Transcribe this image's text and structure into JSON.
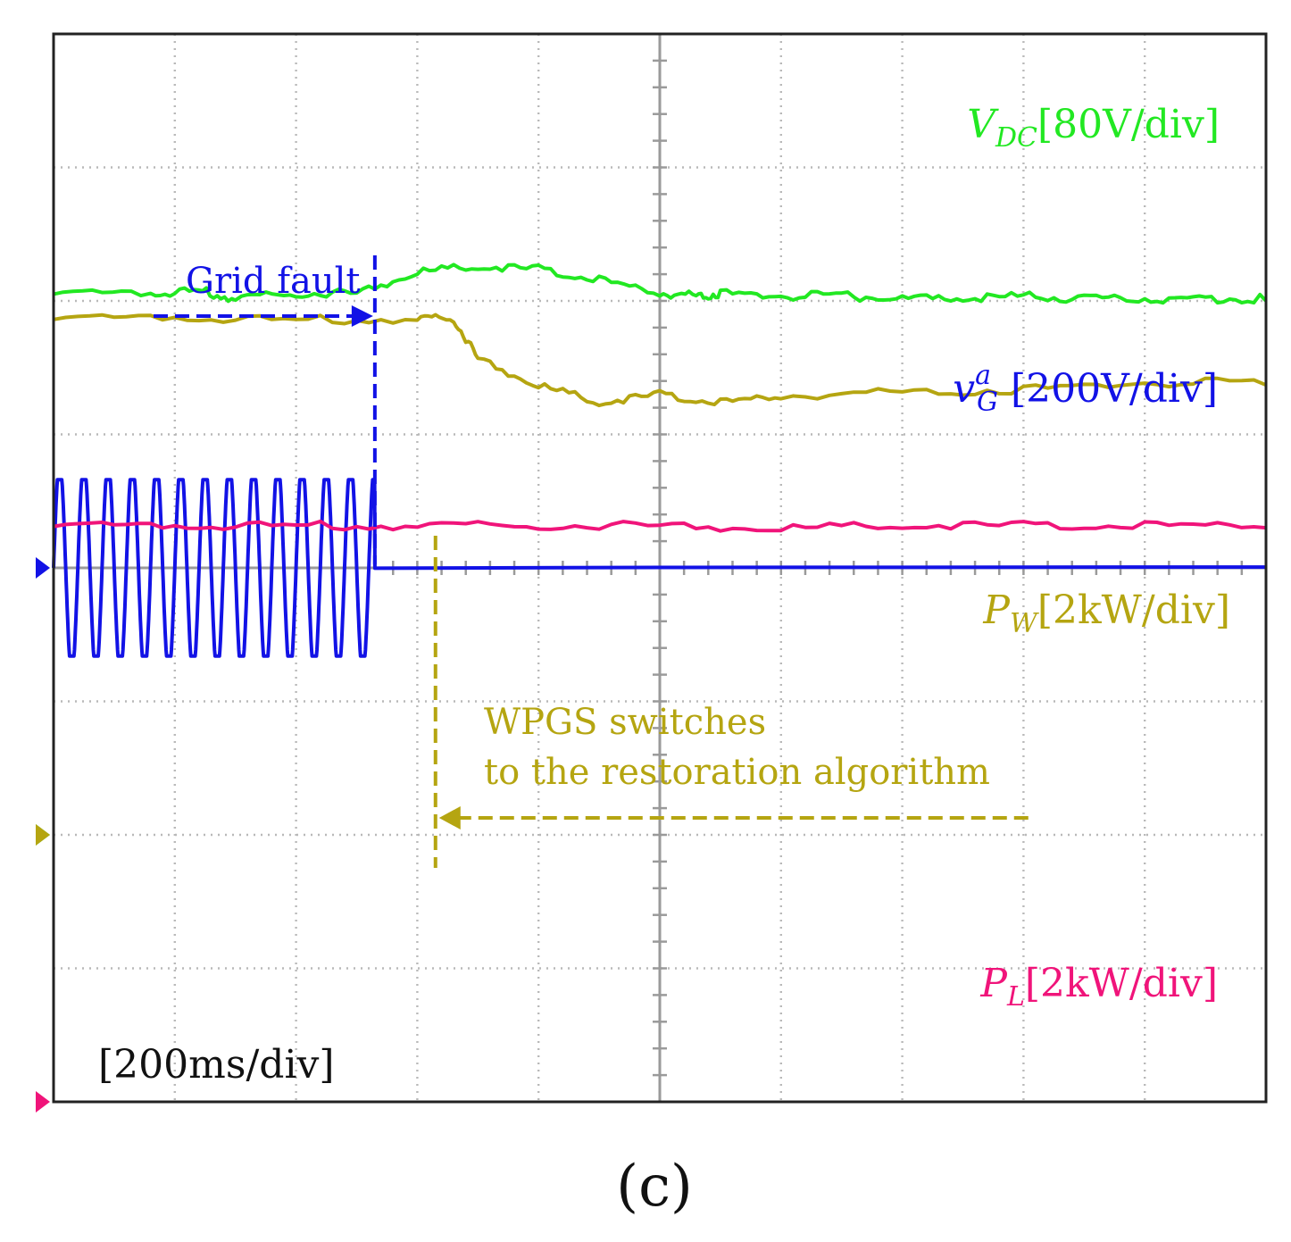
{
  "chart_data": {
    "type": "line",
    "caption": "(c)",
    "time_scale": "[200ms/div]",
    "x_divisions": 10,
    "y_divisions": 8,
    "grid": true,
    "traces": [
      {
        "id": "vdc",
        "symbol": "V",
        "subscript": "DC",
        "superscript": "",
        "scale": "[80V/div]",
        "color": "#22e822",
        "ground_level_div": -2,
        "x": [
          0,
          0.8,
          1.2,
          1.5,
          2.0,
          2.5,
          3.0,
          3.5,
          4.0,
          4.5,
          5.0,
          5.3,
          5.5,
          6.0,
          6.5,
          7.0,
          7.5,
          8.0,
          8.5,
          9.0,
          9.5,
          10
        ],
        "y": [
          2.04,
          2.04,
          2.06,
          2.0,
          2.04,
          2.04,
          2.2,
          2.24,
          2.22,
          2.14,
          2.04,
          2.02,
          2.04,
          2.02,
          2.02,
          2.0,
          2.0,
          2.02,
          2.0,
          2.0,
          2.0,
          2.0
        ]
      },
      {
        "id": "vga",
        "symbol": "v",
        "subscript": "G",
        "superscript": "a",
        "scale": "[200V/div]",
        "color": "#1212e6",
        "ground_level_div": 0,
        "sine_amplitude_div": 0.66,
        "sine_period_div": 0.2,
        "fault_time_div": 2.65,
        "x": [
          2.65,
          5.0,
          10
        ],
        "y": [
          0,
          0,
          0
        ]
      },
      {
        "id": "pw",
        "symbol": "P",
        "subscript": "W",
        "superscript": "",
        "scale": "[2kW/div]",
        "color": "#b5a511",
        "ground_level_div": -2,
        "x": [
          0,
          1.0,
          2.0,
          3.0,
          3.3,
          3.5,
          4.0,
          4.5,
          5.0,
          5.5,
          6.0,
          7.0,
          8.0,
          9.0,
          10
        ],
        "y": [
          1.85,
          1.86,
          1.84,
          1.85,
          1.85,
          1.55,
          1.35,
          1.22,
          1.28,
          1.22,
          1.27,
          1.3,
          1.32,
          1.37,
          1.37
        ]
      },
      {
        "id": "pl",
        "symbol": "P",
        "subscript": "L",
        "superscript": "",
        "scale": "[2kW/div]",
        "color": "#f0147a",
        "ground_level_div": -4,
        "x": [
          0,
          1.0,
          2.0,
          3.0,
          4.0,
          5.0,
          6.0,
          7.0,
          8.0,
          9.0,
          10
        ],
        "y": [
          0.3,
          0.3,
          0.3,
          0.3,
          0.3,
          0.3,
          0.28,
          0.3,
          0.3,
          0.3,
          0.3
        ]
      }
    ],
    "annotations": [
      {
        "id": "grid-fault",
        "text": "Grid fault",
        "color": "#1212e6",
        "at_time_div": 2.65
      },
      {
        "id": "wpgs-switch",
        "lines": [
          "WPGS switches",
          "to the restoration algorithm"
        ],
        "color": "#b5a511",
        "at_time_div": 3.15
      }
    ]
  }
}
